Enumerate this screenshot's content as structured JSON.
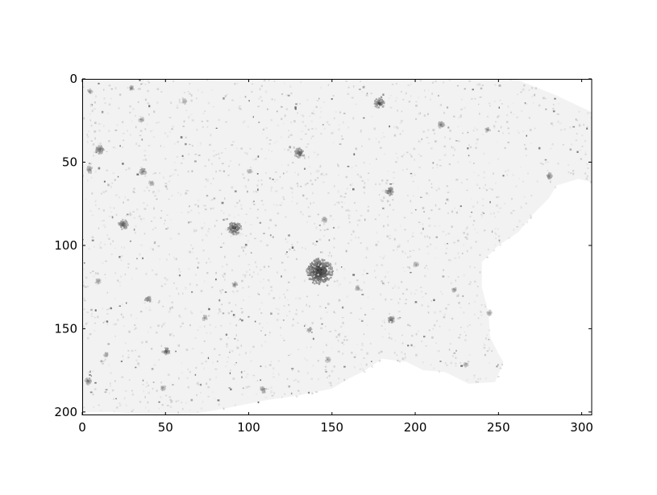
{
  "chart_data": {
    "type": "heatmap",
    "title": "",
    "xlabel": "",
    "ylabel": "",
    "colormap": "gray_r",
    "xlim": [
      0,
      306
    ],
    "ylim": [
      202,
      0
    ],
    "y_axis_inverted": true,
    "grid": false,
    "legend": "none",
    "xticks": [
      0,
      50,
      100,
      150,
      200,
      250,
      300
    ],
    "yticks": [
      0,
      50,
      100,
      150,
      200
    ],
    "x_tick_labels": [
      "0",
      "50",
      "100",
      "150",
      "200",
      "250",
      "300"
    ],
    "y_tick_labels": [
      "0",
      "50",
      "100",
      "150",
      "200"
    ],
    "background_intensity": 0.05,
    "footprint_outline": [
      [
        0,
        0
      ],
      [
        260,
        0
      ],
      [
        285,
        10
      ],
      [
        306,
        20
      ],
      [
        306,
        62
      ],
      [
        298,
        60
      ],
      [
        285,
        64
      ],
      [
        280,
        72
      ],
      [
        270,
        82
      ],
      [
        262,
        92
      ],
      [
        250,
        100
      ],
      [
        240,
        110
      ],
      [
        240,
        125
      ],
      [
        244,
        140
      ],
      [
        245,
        155
      ],
      [
        250,
        165
      ],
      [
        253,
        170
      ],
      [
        248,
        182
      ],
      [
        232,
        183
      ],
      [
        218,
        176
      ],
      [
        205,
        175
      ],
      [
        195,
        170
      ],
      [
        180,
        168
      ],
      [
        170,
        175
      ],
      [
        160,
        180
      ],
      [
        150,
        186
      ],
      [
        130,
        190
      ],
      [
        110,
        193
      ],
      [
        95,
        196
      ],
      [
        80,
        199
      ],
      [
        60,
        202
      ],
      [
        40,
        202
      ],
      [
        20,
        200
      ],
      [
        0,
        200
      ]
    ],
    "hotspots": [
      {
        "x": 142,
        "y": 115,
        "intensity": 0.95,
        "radius": 8
      },
      {
        "x": 91,
        "y": 89,
        "intensity": 0.85,
        "radius": 4
      },
      {
        "x": 24,
        "y": 87,
        "intensity": 0.75,
        "radius": 3
      },
      {
        "x": 178,
        "y": 14,
        "intensity": 0.8,
        "radius": 3
      },
      {
        "x": 130,
        "y": 44,
        "intensity": 0.75,
        "radius": 3
      },
      {
        "x": 184,
        "y": 67,
        "intensity": 0.75,
        "radius": 2.5
      },
      {
        "x": 10,
        "y": 42,
        "intensity": 0.7,
        "radius": 2.5
      },
      {
        "x": 4,
        "y": 54,
        "intensity": 0.6,
        "radius": 2
      },
      {
        "x": 36,
        "y": 55,
        "intensity": 0.65,
        "radius": 2
      },
      {
        "x": 50,
        "y": 163,
        "intensity": 0.75,
        "radius": 2
      },
      {
        "x": 185,
        "y": 144,
        "intensity": 0.7,
        "radius": 2
      },
      {
        "x": 215,
        "y": 27,
        "intensity": 0.6,
        "radius": 2
      },
      {
        "x": 243,
        "y": 30,
        "intensity": 0.5,
        "radius": 1.5
      },
      {
        "x": 280,
        "y": 58,
        "intensity": 0.6,
        "radius": 2
      },
      {
        "x": 39,
        "y": 132,
        "intensity": 0.65,
        "radius": 2
      },
      {
        "x": 3,
        "y": 181,
        "intensity": 0.6,
        "radius": 2
      },
      {
        "x": 108,
        "y": 186,
        "intensity": 0.6,
        "radius": 2
      },
      {
        "x": 29,
        "y": 5,
        "intensity": 0.55,
        "radius": 1.5
      },
      {
        "x": 4,
        "y": 7,
        "intensity": 0.5,
        "radius": 1.5
      },
      {
        "x": 9,
        "y": 121,
        "intensity": 0.55,
        "radius": 1.5
      },
      {
        "x": 91,
        "y": 123,
        "intensity": 0.6,
        "radius": 1.5
      },
      {
        "x": 73,
        "y": 143,
        "intensity": 0.55,
        "radius": 1.5
      },
      {
        "x": 147,
        "y": 168,
        "intensity": 0.5,
        "radius": 1.5
      },
      {
        "x": 145,
        "y": 84,
        "intensity": 0.55,
        "radius": 1.5
      },
      {
        "x": 41,
        "y": 62,
        "intensity": 0.5,
        "radius": 1.5
      },
      {
        "x": 35,
        "y": 24,
        "intensity": 0.5,
        "radius": 1.5
      },
      {
        "x": 61,
        "y": 13,
        "intensity": 0.45,
        "radius": 1.5
      },
      {
        "x": 223,
        "y": 126,
        "intensity": 0.5,
        "radius": 1.5
      },
      {
        "x": 244,
        "y": 140,
        "intensity": 0.45,
        "radius": 1.5
      },
      {
        "x": 230,
        "y": 171,
        "intensity": 0.45,
        "radius": 1.5
      },
      {
        "x": 136,
        "y": 150,
        "intensity": 0.55,
        "radius": 1.5
      },
      {
        "x": 165,
        "y": 125,
        "intensity": 0.5,
        "radius": 1.5
      },
      {
        "x": 14,
        "y": 165,
        "intensity": 0.5,
        "radius": 1.5
      },
      {
        "x": 100,
        "y": 55,
        "intensity": 0.45,
        "radius": 1.5
      },
      {
        "x": 200,
        "y": 111,
        "intensity": 0.5,
        "radius": 1.5
      },
      {
        "x": 48,
        "y": 185,
        "intensity": 0.5,
        "radius": 1.5
      }
    ]
  }
}
